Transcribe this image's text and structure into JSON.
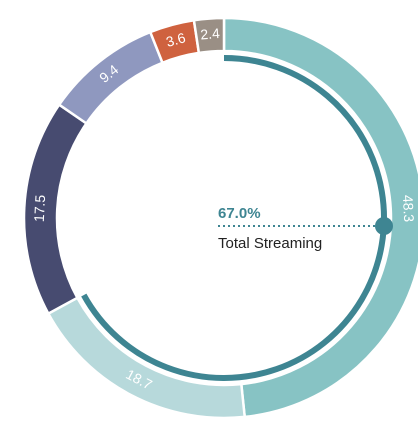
{
  "chart_data": {
    "type": "donut",
    "categories": [
      "Total Streaming",
      null,
      null,
      null,
      null,
      null
    ],
    "values": [
      48.3,
      18.7,
      17.5,
      9.4,
      3.6,
      2.4
    ],
    "colors": [
      "#87c3c4",
      "#b7d9db",
      "#474b70",
      "#8f98bf",
      "#cf623f",
      "#9a8f85"
    ],
    "progress": 67.0,
    "progress_label": "67.0%",
    "progress_name": "Total Streaming",
    "progress_color": "#3e8592"
  }
}
